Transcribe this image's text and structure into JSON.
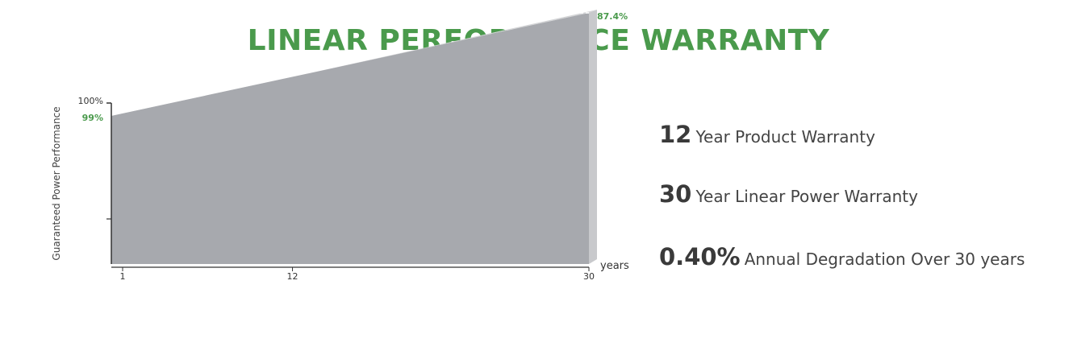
{
  "title": "LINEAR PERFORMANCE WARRANTY",
  "colors": {
    "title": "#4a9a4c",
    "green_label": "#4a9a4c",
    "area_fill": "#a7a9ae",
    "area_top": "#d3d4d6",
    "area_side": "#c8c9cc",
    "axis": "#333333"
  },
  "chart_data": {
    "type": "area",
    "title": "",
    "xlabel": "years",
    "ylabel": "Guaranteed Power Performance",
    "x_ticks": [
      "1",
      "12",
      "30"
    ],
    "y_ticks": [
      "100%",
      "99%"
    ],
    "x": [
      1,
      30
    ],
    "values": [
      99,
      87.4
    ],
    "point_labels": [
      "99%",
      "87.4%"
    ],
    "reference_line": 87.4,
    "xlim": [
      1,
      30
    ],
    "ylim": [
      80,
      100
    ],
    "grid": false,
    "legend": "none"
  },
  "warranties": [
    {
      "number": "12",
      "text": "Year Product Warranty"
    },
    {
      "number": "30",
      "text": "Year Linear Power Warranty"
    },
    {
      "number": "0.40%",
      "text": "Annual Degradation Over 30 years"
    }
  ]
}
